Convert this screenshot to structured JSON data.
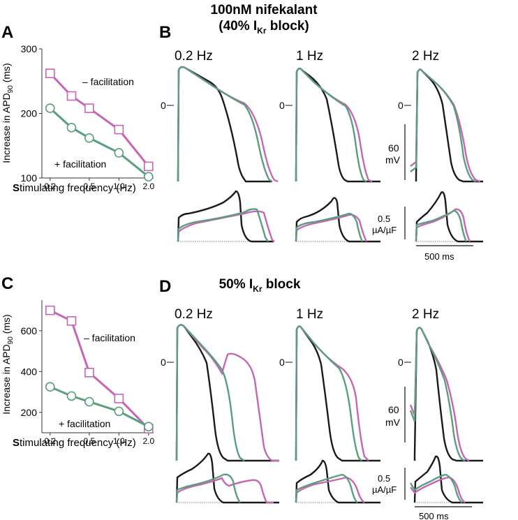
{
  "colors": {
    "minus": "#c566b4",
    "plus": "#5a9e7c",
    "control": "#1a1a1a",
    "axis": "#333333"
  },
  "panel_letters": {
    "A": "A",
    "B": "B",
    "C": "C",
    "D": "D"
  },
  "chart_data": [
    {
      "type": "line",
      "panel": "A",
      "x": [
        0.2,
        0.33,
        0.5,
        1.0,
        2.0
      ],
      "xscale": "log",
      "xticks": [
        "0.2",
        "0.5",
        "1.0",
        "2.0"
      ],
      "yticks": [
        "100",
        "200",
        "300"
      ],
      "ylim": [
        100,
        300
      ],
      "xlabel_prefix": "S",
      "xlabel_rest": "timulating frequency (Hz)",
      "ylabel": "Increase in APD",
      "ylabel_sub": "90",
      "ylabel_unit": " (ms)",
      "series": [
        {
          "name": "– facilitation",
          "marker": "square",
          "values": [
            262,
            227,
            208,
            175,
            118
          ]
        },
        {
          "name": "+ facilitation",
          "marker": "circle",
          "values": [
            208,
            178,
            162,
            139,
            102
          ]
        }
      ]
    },
    {
      "type": "line",
      "panel": "C",
      "x": [
        0.2,
        0.33,
        0.5,
        1.0,
        2.0
      ],
      "xscale": "log",
      "xticks": [
        "0.2",
        "0.5",
        "1.0",
        "2.0"
      ],
      "yticks": [
        "200",
        "400",
        "600"
      ],
      "ylim": [
        100,
        750
      ],
      "xlabel_prefix": "S",
      "xlabel_rest": "timulating frequency (Hz)",
      "ylabel": "Increase in APD",
      "ylabel_sub": "90",
      "ylabel_unit": " (ms)",
      "series": [
        {
          "name": "– facilitation",
          "marker": "square",
          "values": [
            700,
            648,
            395,
            268,
            120
          ]
        },
        {
          "name": "+ facilitation",
          "marker": "circle",
          "values": [
            325,
            280,
            252,
            205,
            130
          ]
        }
      ]
    }
  ],
  "panel_B": {
    "title_line1": "100nM nifekalant",
    "title_line2_pre": "(40% I",
    "title_line2_sub": "Kr",
    "title_line2_post": " block)",
    "freq_labels": [
      "0.2 Hz",
      "1 Hz",
      "2 Hz"
    ],
    "zero_label": "0",
    "voltage_scale": {
      "value": "60",
      "unit": "mV"
    },
    "current_scale": {
      "value": "0.5",
      "unit": "µA/µF"
    },
    "time_scale": "500 ms"
  },
  "panel_D": {
    "title_pre": "50% I",
    "title_sub": "Kr",
    "title_post": " block",
    "freq_labels": [
      "0.2 Hz",
      "1 Hz",
      "2 Hz"
    ],
    "zero_label": "0",
    "voltage_scale": {
      "value": "60",
      "unit": "mV"
    },
    "current_scale": {
      "value": "0.5",
      "unit": "µA/µF"
    },
    "time_scale": "500 ms"
  }
}
